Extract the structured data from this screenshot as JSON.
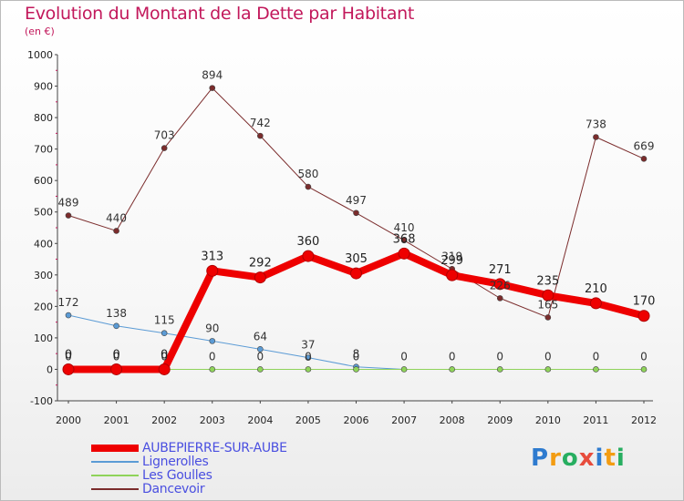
{
  "title": "Evolution du Montant de la Dette par Habitant",
  "unit_label": "(en €)",
  "logo": {
    "letters": [
      "P",
      "r",
      "o",
      "x",
      "i",
      "t",
      "i"
    ],
    "colors": [
      "#2e7bcf",
      "#f39c12",
      "#27ae60",
      "#e74c3c",
      "#2e7bcf",
      "#f39c12",
      "#27ae60"
    ]
  },
  "chart_data": {
    "type": "line",
    "title": "Evolution du Montant de la Dette par Habitant",
    "ylabel": "(en €)",
    "xlabel": "",
    "x": [
      "2000",
      "2001",
      "2002",
      "2003",
      "2004",
      "2005",
      "2006",
      "2007",
      "2008",
      "2009",
      "2010",
      "2011",
      "2012"
    ],
    "ylim": [
      -100,
      1000
    ],
    "yticks": [
      -100,
      0,
      100,
      200,
      300,
      400,
      500,
      600,
      700,
      800,
      900,
      1000
    ],
    "grid": false,
    "legend_position": "bottom-left",
    "series": [
      {
        "name": "AUBEPIERRE-SUR-AUBE",
        "color": "#ee0000",
        "values": [
          0,
          0,
          0,
          313,
          292,
          360,
          305,
          368,
          299,
          271,
          235,
          210,
          170
        ],
        "labels": [
          "0",
          "0",
          "0",
          "313",
          "292",
          "360",
          "305",
          "368",
          "299",
          "271",
          "235",
          "210",
          "170"
        ]
      },
      {
        "name": "Lignerolles",
        "color": "#5b9bd5",
        "values": [
          172,
          138,
          115,
          90,
          64,
          37,
          8,
          0,
          0,
          0,
          0,
          0,
          0
        ],
        "labels": [
          "172",
          "138",
          "115",
          "90",
          "64",
          "37",
          "8",
          "",
          "",
          "",
          "",
          "",
          ""
        ]
      },
      {
        "name": "Les Goulles",
        "color": "#8fd35a",
        "values": [
          0,
          0,
          0,
          0,
          0,
          0,
          0,
          0,
          0,
          0,
          0,
          0,
          0
        ],
        "labels": [
          "0",
          "0",
          "0",
          "0",
          "0",
          "0",
          "0",
          "0",
          "0",
          "0",
          "0",
          "0",
          "0"
        ]
      },
      {
        "name": "Dancevoir",
        "color": "#7b2c2c",
        "values": [
          489,
          440,
          703,
          894,
          742,
          580,
          497,
          410,
          319,
          226,
          165,
          738,
          669
        ],
        "labels": [
          "489",
          "440",
          "703",
          "894",
          "742",
          "580",
          "497",
          "410",
          "319",
          "226",
          "165",
          "738",
          "669"
        ]
      }
    ]
  }
}
